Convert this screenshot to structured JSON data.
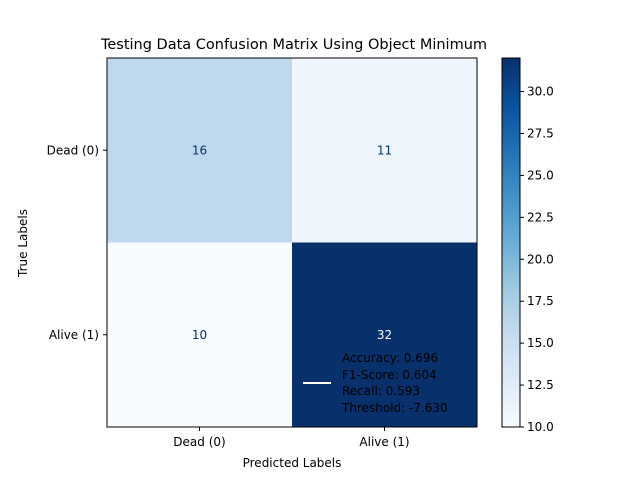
{
  "chart_data": {
    "type": "heatmap",
    "title": "Testing Data Confusion Matrix Using Object Minimum",
    "xlabel": "Predicted Labels",
    "ylabel": "True Labels",
    "x_categories": [
      "Dead (0)",
      "Alive (1)"
    ],
    "y_categories": [
      "Dead (0)",
      "Alive (1)"
    ],
    "matrix": [
      [
        16,
        11
      ],
      [
        10,
        32
      ]
    ],
    "colormap": "Blues",
    "colorbar": {
      "range": [
        10,
        32
      ],
      "ticks": [
        "10.0",
        "12.5",
        "15.0",
        "17.5",
        "20.0",
        "22.5",
        "25.0",
        "27.5",
        "30.0"
      ]
    },
    "legend": {
      "placement": "lower-right",
      "lines": [
        "Accuracy: 0.696",
        "F1-Score: 0.604",
        "Recall: 0.593",
        "Threshold: -7.630"
      ]
    },
    "colors": {
      "low": "#f7fbff",
      "high": "#08306b",
      "text_on_light": "#08306b",
      "text_on_dark": "#f7fbff"
    }
  }
}
